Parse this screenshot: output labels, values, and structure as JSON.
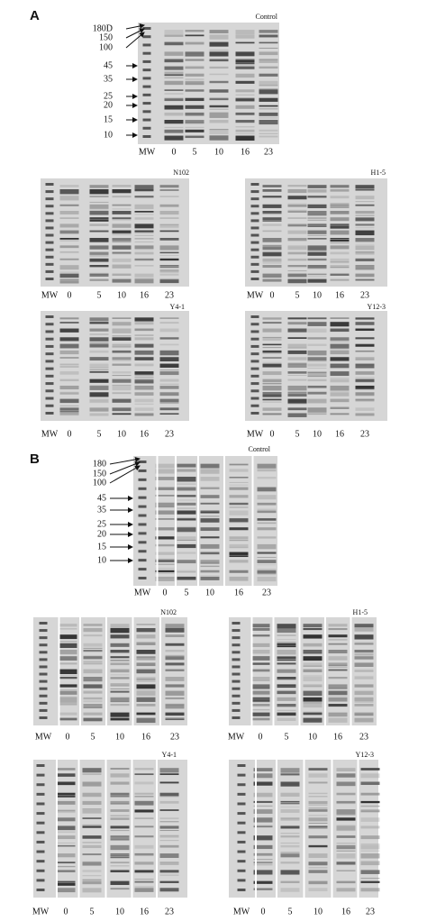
{
  "panels": [
    {
      "label": "A",
      "gels": [
        {
          "title": "Control",
          "markers": [
            "180D",
            "150",
            "100",
            "45",
            "35",
            "25",
            "20",
            "15",
            "10"
          ],
          "lanes": [
            "MW",
            "0",
            "5",
            "10",
            "16",
            "23"
          ]
        },
        {
          "title": "N102",
          "lanes": [
            "MW",
            "0",
            "5",
            "10",
            "16",
            "23"
          ]
        },
        {
          "title": "H1-5",
          "lanes": [
            "MW",
            "0",
            "5",
            "10",
            "16",
            "23"
          ]
        },
        {
          "title": "Y4-1",
          "lanes": [
            "MW",
            "0",
            "5",
            "10",
            "16",
            "23"
          ]
        },
        {
          "title": "Y12-3",
          "lanes": [
            "MW",
            "0",
            "5",
            "10",
            "16",
            "23"
          ]
        }
      ]
    },
    {
      "label": "B",
      "gels": [
        {
          "title": "Control",
          "markers": [
            "180",
            "150",
            "100",
            "45",
            "35",
            "25",
            "20",
            "15",
            "10"
          ],
          "lanes": [
            "MW",
            "0",
            "5",
            "10",
            "16",
            "23"
          ]
        },
        {
          "title": "N102",
          "lanes": [
            "MW",
            "0",
            "5",
            "10",
            "16",
            "23"
          ]
        },
        {
          "title": "H1-5",
          "lanes": [
            "MW",
            "0",
            "5",
            "10",
            "16",
            "23"
          ]
        },
        {
          "title": "Y4-1",
          "lanes": [
            "MW",
            "0",
            "5",
            "10",
            "16",
            "23"
          ]
        },
        {
          "title": "Y12-3",
          "lanes": [
            "MW",
            "0",
            "5",
            "10",
            "16",
            "23"
          ]
        }
      ]
    }
  ]
}
